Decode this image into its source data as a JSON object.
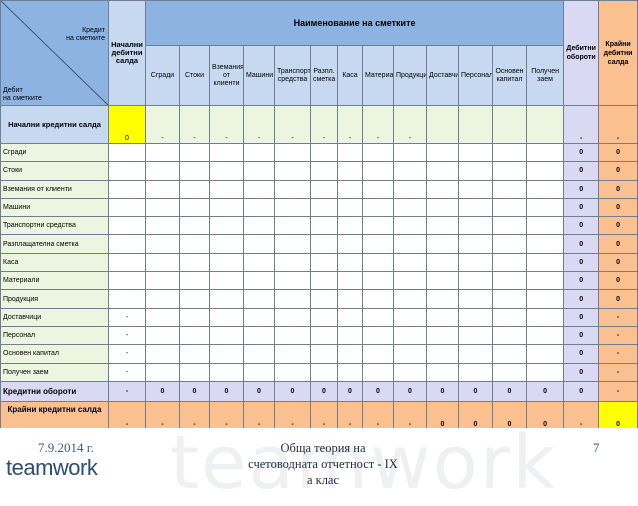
{
  "header": {
    "corner_credit": "Кредит\nна сметките",
    "corner_debit": "Дебит\nна сметките",
    "opening_debit": "Начални дебитни салда",
    "accounts_title": "Наименование на сметките",
    "debit_turnover": "Дебитни обороти",
    "closing_debit": "Крайни дебитни салда"
  },
  "columns": [
    "Сгради",
    "Стоки",
    "Вземания от клиенти",
    "Машини",
    "Транспортни средства",
    "Разпл. сметка",
    "Каса",
    "Материали",
    "Продукция",
    "Доставчици",
    "Персонал",
    "Основен капитал",
    "Получен заем"
  ],
  "opening_credit_row": {
    "label": "Начални кредитни салда",
    "first": "0",
    "cells": [
      "-",
      "-",
      "-",
      "-",
      "-",
      "-",
      "-",
      "-",
      "-",
      "",
      "",
      "",
      ""
    ],
    "debit": "-",
    "closing": "-"
  },
  "rows": [
    {
      "label": "Сгради",
      "open": "",
      "debit": "0",
      "closing": "0"
    },
    {
      "label": "Стоки",
      "open": "",
      "debit": "0",
      "closing": "0"
    },
    {
      "label": "Вземания от клиенти",
      "open": "",
      "debit": "0",
      "closing": "0"
    },
    {
      "label": "Машини",
      "open": "",
      "debit": "0",
      "closing": "0"
    },
    {
      "label": "Транспортни средства",
      "open": "",
      "debit": "0",
      "closing": "0"
    },
    {
      "label": "Разплащателна сметка",
      "open": "",
      "debit": "0",
      "closing": "0"
    },
    {
      "label": "Каса",
      "open": "",
      "debit": "0",
      "closing": "0"
    },
    {
      "label": "Материали",
      "open": "",
      "debit": "0",
      "closing": "0"
    },
    {
      "label": "Продукция",
      "open": "",
      "debit": "0",
      "closing": "0"
    },
    {
      "label": "Доставчици",
      "open": "-",
      "debit": "0",
      "closing": "-"
    },
    {
      "label": "Персонал",
      "open": "-",
      "debit": "0",
      "closing": "-"
    },
    {
      "label": "Основен капитал",
      "open": "-",
      "debit": "0",
      "closing": "-"
    },
    {
      "label": "Получен заем",
      "open": "-",
      "debit": "0",
      "closing": "-"
    }
  ],
  "credit_turnover_row": {
    "label": "Кредитни обороти",
    "first": "-",
    "cells": [
      "0",
      "0",
      "0",
      "0",
      "0",
      "0",
      "0",
      "0",
      "0",
      "0",
      "0",
      "0",
      "0"
    ],
    "debit": "0",
    "closing": "-"
  },
  "closing_credit_row": {
    "label": "Крайни кредитни салда",
    "first": "-",
    "cells": [
      "-",
      "-",
      "-",
      "-",
      "-",
      "-",
      "-",
      "-",
      "-",
      "0",
      "0",
      "0",
      "0"
    ],
    "debit": "-",
    "closing": "0"
  },
  "footer": {
    "date": "7.9.2014 г.",
    "logo": "teamwork",
    "watermark": "teamwork",
    "title": "Обща теория на счетоводната отчетност - IX а клас",
    "page": "7"
  },
  "colors": {
    "header_blue": "#8db3e2",
    "light_blue": "#c6d9f1",
    "lavender": "#d9d9f3",
    "peach": "#fac090",
    "green": "#ebf5df",
    "yellow": "#ffff00"
  }
}
